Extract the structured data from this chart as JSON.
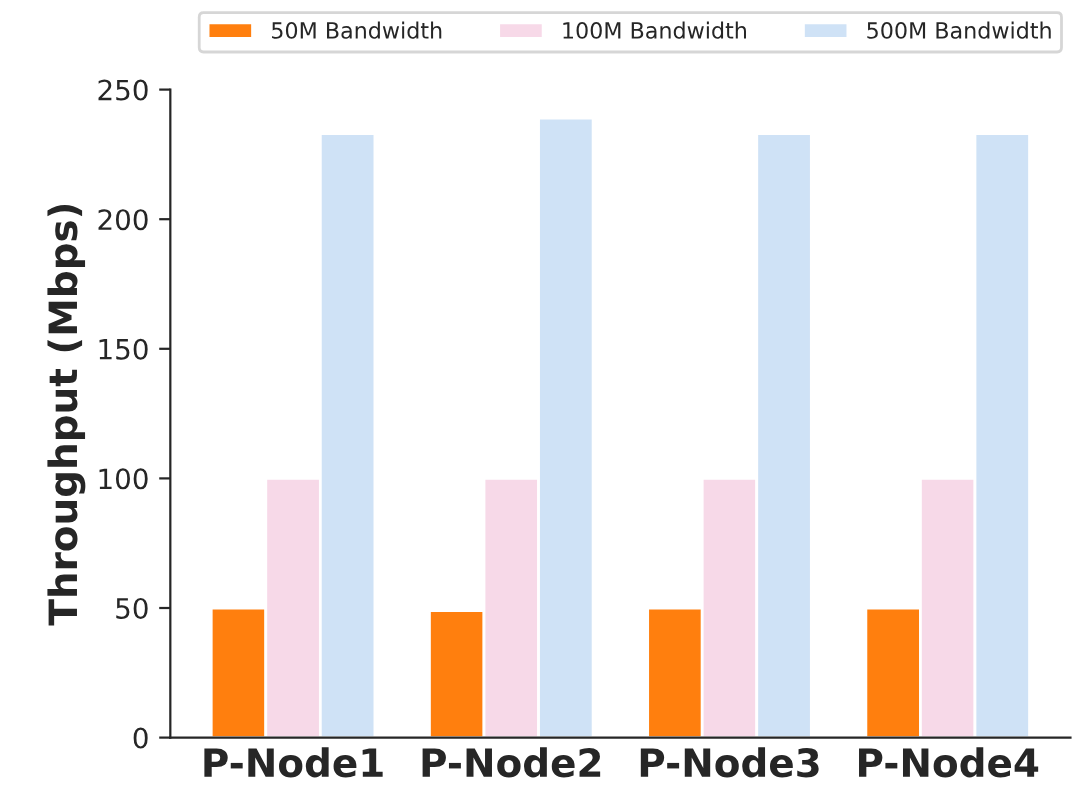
{
  "chart_data": {
    "type": "bar",
    "ylabel": "Throughput (Mbps)",
    "categories": [
      "P-Node1",
      "P-Node2",
      "P-Node3",
      "P-Node4"
    ],
    "series": [
      {
        "name": "50M Bandwidth",
        "color": "#ff7f0e",
        "values": [
          50,
          49,
          50,
          50
        ]
      },
      {
        "name": "100M Bandwidth",
        "color": "#f7d9e8",
        "values": [
          100,
          100,
          100,
          100
        ]
      },
      {
        "name": "500M Bandwidth",
        "color": "#cfe2f6",
        "values": [
          233,
          239,
          233,
          233
        ]
      }
    ],
    "ylim": [
      0,
      250
    ],
    "yticks": [
      0,
      50,
      100,
      150,
      200,
      250
    ],
    "grid": false,
    "legend": "top"
  }
}
